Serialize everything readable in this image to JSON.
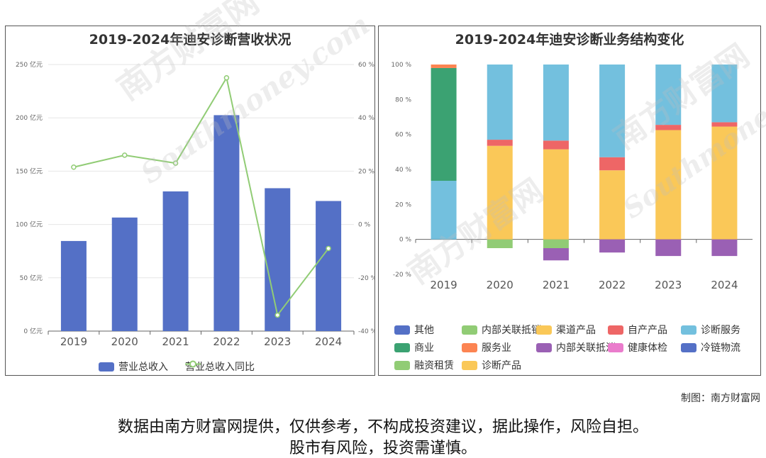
{
  "watermark": {
    "brand": "南方财富网",
    "domain": "Southmoney.com"
  },
  "credit": "制图：南方财富网",
  "disclaimer": {
    "line1": "数据由南方财富网提供，仅供参考，不构成投资建议，据此操作，风险自担。",
    "line2": "股市有风险，投资需谨慎。"
  },
  "colors": {
    "bar_blue": "#5470c6",
    "line_green": "#91cc75",
    "other": "#5470c6",
    "internal_offset": "#91cc75",
    "channel": "#fac858",
    "own": "#ee6666",
    "diag_service": "#73c0de",
    "commerce": "#3ba272",
    "services": "#fc8452",
    "internal_elim": "#9a60b4",
    "health": "#ea7ccc",
    "cold_chain": "#5470c6",
    "lease": "#91cc75",
    "diag_products": "#fac858"
  },
  "chart_data": [
    {
      "type": "bar",
      "title": "2019-2024年迪安诊断营收状况",
      "categories": [
        "2019",
        "2020",
        "2021",
        "2022",
        "2023",
        "2024"
      ],
      "y_left": {
        "ticks": [
          0,
          50,
          100,
          150,
          200,
          250
        ],
        "unit": "亿元",
        "ylim": [
          0,
          250
        ]
      },
      "y_right": {
        "ticks": [
          -40,
          -20,
          0,
          20,
          40,
          60
        ],
        "unit": "%",
        "ylim": [
          -40,
          60
        ]
      },
      "series": [
        {
          "name": "营业总收入",
          "type": "bar",
          "axis": "left",
          "values": [
            84.5,
            106.5,
            131.0,
            202.5,
            134.0,
            122.0
          ]
        },
        {
          "name": "营业总收入同比",
          "type": "line",
          "axis": "right",
          "values": [
            21.5,
            26.0,
            23.0,
            55.0,
            -34.0,
            -9.0
          ]
        }
      ],
      "grid": true,
      "legend_position": "bottom"
    },
    {
      "type": "bar",
      "stacked": true,
      "title": "2019-2024年迪安诊断业务结构变化",
      "categories": [
        "2019",
        "2020",
        "2021",
        "2022",
        "2023",
        "2024"
      ],
      "y": {
        "ticks": [
          -20,
          0,
          20,
          40,
          60,
          80,
          100
        ],
        "unit": "%",
        "ylim": [
          -20,
          100
        ]
      },
      "series": [
        {
          "name": "其他",
          "color_key": "other",
          "values": [
            0,
            0,
            0,
            0,
            0,
            0
          ]
        },
        {
          "name": "内部关联抵销",
          "color_key": "internal_offset",
          "values": [
            0,
            -5,
            -5,
            0,
            0,
            0
          ]
        },
        {
          "name": "渠道产品",
          "color_key": "channel",
          "values": [
            0,
            53.5,
            51.5,
            39.5,
            62.5,
            64.5
          ]
        },
        {
          "name": "自产产品",
          "color_key": "own",
          "values": [
            0,
            3.5,
            5,
            7.5,
            3,
            2.5
          ]
        },
        {
          "name": "诊断服务",
          "color_key": "diag_service",
          "values": [
            33.5,
            43,
            43.5,
            53,
            34.5,
            33
          ]
        },
        {
          "name": "商业",
          "color_key": "commerce",
          "values": [
            64.5,
            0,
            0,
            0,
            0,
            0
          ]
        },
        {
          "name": "服务业",
          "color_key": "services",
          "values": [
            2,
            0,
            0,
            0,
            0,
            0
          ]
        },
        {
          "name": "内部关联抵消",
          "color_key": "internal_elim",
          "values": [
            0,
            0,
            -7,
            -7.5,
            -9.5,
            -9.5
          ]
        },
        {
          "name": "健康体检",
          "color_key": "health",
          "values": [
            0,
            0,
            0,
            0,
            0,
            0
          ]
        },
        {
          "name": "冷链物流",
          "color_key": "cold_chain",
          "values": [
            0,
            0,
            0,
            0,
            0,
            0
          ]
        },
        {
          "name": "融资租赁",
          "color_key": "lease",
          "values": [
            0,
            0,
            0,
            0,
            0,
            0
          ]
        },
        {
          "name": "诊断产品",
          "color_key": "diag_products",
          "values": [
            0,
            0,
            0,
            0,
            0,
            0
          ]
        }
      ],
      "grid": false,
      "legend_position": "bottom"
    }
  ]
}
